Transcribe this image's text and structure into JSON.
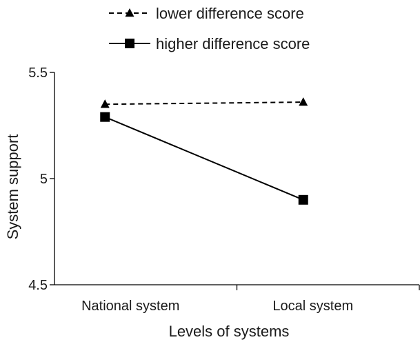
{
  "chart_data": {
    "type": "line",
    "categories": [
      "National system",
      "Local system"
    ],
    "series": [
      {
        "name": "lower difference score",
        "values": [
          5.35,
          5.36
        ],
        "marker": "triangle",
        "line": "dashed",
        "color": "#000000"
      },
      {
        "name": "higher difference score",
        "values": [
          5.29,
          4.9
        ],
        "marker": "square",
        "line": "solid",
        "color": "#000000"
      }
    ],
    "xlabel": "Levels of systems",
    "ylabel": "System support",
    "ylim": [
      4.5,
      5.5
    ],
    "yticks": [
      "4.5",
      "5",
      "5.5"
    ],
    "grid": false,
    "legend_position": "top-center"
  }
}
